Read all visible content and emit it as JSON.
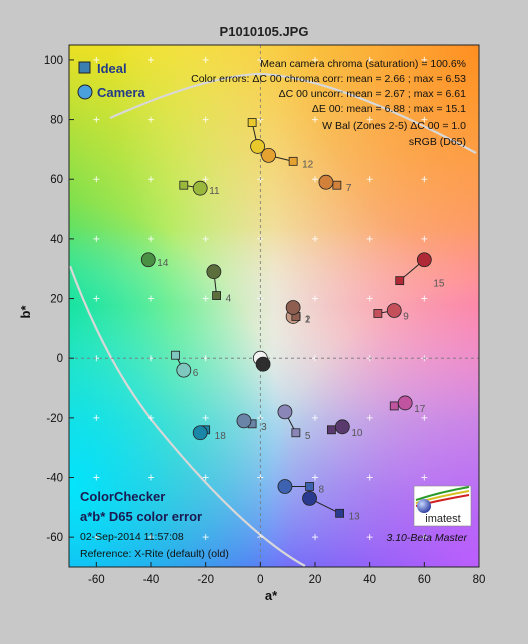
{
  "window_title": "P1010105.JPG",
  "colors": {
    "background": "#c8c8c8",
    "ideal_legend": "#3a7fb0",
    "camera_legend": "#4aa0dd",
    "gamut_line": "#d8d8d8"
  },
  "chart_data": {
    "type": "scatter",
    "title": "P1010105.JPG",
    "xlabel": "a*",
    "ylabel": "b*",
    "xlim": [
      -70,
      80
    ],
    "ylim": [
      -70,
      105
    ],
    "xticks": [
      -60,
      -40,
      -20,
      0,
      20,
      40,
      60,
      80
    ],
    "yticks": [
      -60,
      -40,
      -20,
      0,
      20,
      40,
      60,
      80,
      100
    ],
    "grid": true,
    "legend": {
      "placement": "top-left",
      "entries": [
        "Ideal",
        "Camera"
      ]
    },
    "stats": [
      "Mean camera chroma (saturation) = 100.6%",
      "Color errors: ΔC 00 chroma corr:  mean = 2.66 ;  max = 6.53",
      "ΔC 00 uncorr:  mean = 2.67 ;  max = 6.61",
      "ΔE 00:  mean = 6.88 ;  max = 15.1",
      "W Bal (Zones 2-5) ΔC 00 = 1.0",
      "sRGB (D65)"
    ],
    "footer_left": [
      "ColorChecker",
      "a*b* D65 color error",
      "02-Sep-2014 11:57:08",
      "Reference: X-Rite (default) (old)"
    ],
    "footer_right": "3.10-Beta  Master",
    "logo_text": "imatest",
    "patches": [
      {
        "id": "1",
        "ideal": [
          13,
          14
        ],
        "camera": [
          12,
          14
        ],
        "color": "#c69a84"
      },
      {
        "id": "2",
        "ideal": [
          13,
          14
        ],
        "camera": [
          12,
          17
        ],
        "color": "#8e5e50"
      },
      {
        "id": "3",
        "ideal": [
          -3,
          -22
        ],
        "camera": [
          -6,
          -21
        ],
        "color": "#6a84a8"
      },
      {
        "id": "4",
        "ideal": [
          -16,
          21
        ],
        "camera": [
          -17,
          29
        ],
        "color": "#5b6e3c"
      },
      {
        "id": "5",
        "ideal": [
          13,
          -25
        ],
        "camera": [
          9,
          -18
        ],
        "color": "#8a86b8"
      },
      {
        "id": "6",
        "ideal": [
          -31,
          1
        ],
        "camera": [
          -28,
          -4
        ],
        "color": "#7ec8c0"
      },
      {
        "id": "7",
        "ideal": [
          28,
          58
        ],
        "camera": [
          24,
          59
        ],
        "color": "#d2813a"
      },
      {
        "id": "8",
        "ideal": [
          18,
          -43
        ],
        "camera": [
          9,
          -43
        ],
        "color": "#3c62b0"
      },
      {
        "id": "9",
        "ideal": [
          43,
          15
        ],
        "camera": [
          49,
          16
        ],
        "color": "#c4505c"
      },
      {
        "id": "10",
        "ideal": [
          26,
          -24
        ],
        "camera": [
          30,
          -23
        ],
        "color": "#5a3a6e"
      },
      {
        "id": "11",
        "ideal": [
          -28,
          58
        ],
        "camera": [
          -22,
          57
        ],
        "color": "#9ab83c"
      },
      {
        "id": "12",
        "ideal": [
          12,
          66
        ],
        "camera": [
          3,
          68
        ],
        "color": "#e6a230"
      },
      {
        "id": "13",
        "ideal": [
          29,
          -52
        ],
        "camera": [
          18,
          -47
        ],
        "color": "#2a3a8e"
      },
      {
        "id": "14",
        "ideal": [
          -41,
          33
        ],
        "camera": [
          -41,
          33
        ],
        "color": "#4a9044"
      },
      {
        "id": "15",
        "ideal": [
          51,
          26
        ],
        "camera": [
          60,
          33
        ],
        "color": "#b02a36"
      },
      {
        "id": "16",
        "ideal": [
          -3,
          79
        ],
        "camera": [
          -1,
          71
        ],
        "color": "#e8c82a"
      },
      {
        "id": "17",
        "ideal": [
          49,
          -16
        ],
        "camera": [
          53,
          -15
        ],
        "color": "#c054a0"
      },
      {
        "id": "18",
        "ideal": [
          -20,
          -24
        ],
        "camera": [
          -22,
          -25
        ],
        "color": "#1a86a8"
      },
      {
        "id": "19",
        "ideal": [
          0,
          0
        ],
        "camera": [
          0,
          0
        ],
        "color": "#f2f2f2"
      },
      {
        "id": "20",
        "ideal": [
          1,
          -2
        ],
        "camera": [
          1,
          -2
        ],
        "color": "#2e2e2e"
      }
    ]
  }
}
